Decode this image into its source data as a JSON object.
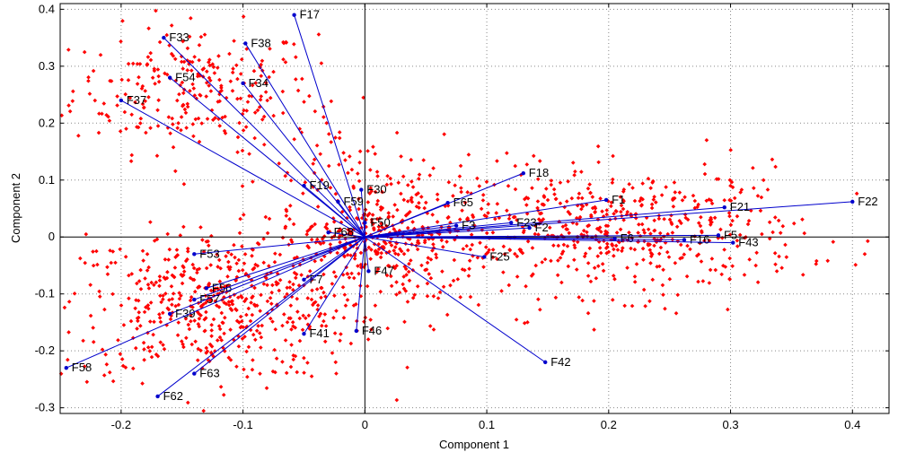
{
  "chart_data": {
    "type": "scatter",
    "subtype": "pca-biplot",
    "title": "",
    "xlabel": "Component 1",
    "ylabel": "Component 2",
    "xlim": [
      -0.25,
      0.43
    ],
    "ylim": [
      -0.31,
      0.41
    ],
    "xticks": [
      -0.2,
      -0.1,
      0,
      0.1,
      0.2,
      0.3,
      0.4
    ],
    "xtick_labels": [
      "-0.2",
      "-0.1",
      "0",
      "0.1",
      "0.2",
      "0.3",
      "0.4"
    ],
    "yticks": [
      -0.3,
      -0.2,
      -0.1,
      0,
      0.1,
      0.2,
      0.3,
      0.4
    ],
    "ytick_labels": [
      "-0.3",
      "-0.2",
      "-0.1",
      "0",
      "0.1",
      "0.2",
      "0.3",
      "0.4"
    ],
    "grid": "dotted",
    "colors": {
      "scores": "#ff0000",
      "vectors": "#0000cc",
      "axes": "#000000"
    },
    "loadings": [
      {
        "name": "F17",
        "x": -0.058,
        "y": 0.39
      },
      {
        "name": "F38",
        "x": -0.098,
        "y": 0.34
      },
      {
        "name": "F33",
        "x": -0.165,
        "y": 0.35
      },
      {
        "name": "F54",
        "x": -0.16,
        "y": 0.28
      },
      {
        "name": "F34",
        "x": -0.1,
        "y": 0.27
      },
      {
        "name": "F37",
        "x": -0.2,
        "y": 0.24
      },
      {
        "name": "F19",
        "x": -0.05,
        "y": 0.09
      },
      {
        "name": "F30",
        "x": -0.003,
        "y": 0.083
      },
      {
        "name": "F59",
        "x": -0.022,
        "y": 0.062
      },
      {
        "name": "F18",
        "x": 0.13,
        "y": 0.112
      },
      {
        "name": "F65",
        "x": 0.068,
        "y": 0.06
      },
      {
        "name": "F1",
        "x": 0.198,
        "y": 0.065
      },
      {
        "name": "F22",
        "x": 0.4,
        "y": 0.062
      },
      {
        "name": "F21",
        "x": 0.295,
        "y": 0.052
      },
      {
        "name": "F23",
        "x": 0.12,
        "y": 0.025
      },
      {
        "name": "F3",
        "x": 0.075,
        "y": 0.02
      },
      {
        "name": "F2",
        "x": 0.135,
        "y": 0.016
      },
      {
        "name": "F5",
        "x": 0.29,
        "y": 0.003
      },
      {
        "name": "F6",
        "x": 0.205,
        "y": -0.003
      },
      {
        "name": "F16",
        "x": 0.262,
        "y": -0.005
      },
      {
        "name": "F43",
        "x": 0.302,
        "y": -0.01
      },
      {
        "name": "F25",
        "x": 0.098,
        "y": -0.035
      },
      {
        "name": "F42",
        "x": 0.148,
        "y": -0.22
      },
      {
        "name": "F68",
        "x": -0.03,
        "y": 0.008
      },
      {
        "name": "F50",
        "x": 0.0,
        "y": 0.025
      },
      {
        "name": "F53",
        "x": -0.14,
        "y": -0.03
      },
      {
        "name": "F47",
        "x": 0.003,
        "y": -0.06
      },
      {
        "name": "F46",
        "x": -0.007,
        "y": -0.165
      },
      {
        "name": "F7",
        "x": -0.05,
        "y": -0.075
      },
      {
        "name": "F56",
        "x": -0.13,
        "y": -0.09
      },
      {
        "name": "F57",
        "x": -0.14,
        "y": -0.11
      },
      {
        "name": "F39",
        "x": -0.16,
        "y": -0.135
      },
      {
        "name": "F41",
        "x": -0.05,
        "y": -0.17
      },
      {
        "name": "F58",
        "x": -0.245,
        "y": -0.23
      },
      {
        "name": "F63",
        "x": -0.14,
        "y": -0.24
      },
      {
        "name": "F62",
        "x": -0.17,
        "y": -0.28
      }
    ],
    "score_clusters": [
      {
        "cx": -0.14,
        "cy": 0.26,
        "sx": 0.05,
        "sy": 0.055,
        "n": 260
      },
      {
        "cx": -0.12,
        "cy": -0.12,
        "sx": 0.065,
        "sy": 0.065,
        "n": 560
      },
      {
        "cx": 0.22,
        "cy": 0.01,
        "sx": 0.07,
        "sy": 0.055,
        "n": 480
      },
      {
        "cx": 0.05,
        "cy": 0.0,
        "sx": 0.05,
        "sy": 0.07,
        "n": 250
      },
      {
        "cx": 0.0,
        "cy": 0.0,
        "sx": 0.025,
        "sy": 0.03,
        "n": 160
      },
      {
        "cx": -0.02,
        "cy": 0.12,
        "sx": 0.04,
        "sy": 0.06,
        "n": 60
      }
    ],
    "score_seed": 12345
  }
}
